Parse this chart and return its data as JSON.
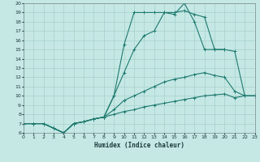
{
  "xlabel": "Humidex (Indice chaleur)",
  "xlim": [
    0,
    23
  ],
  "ylim": [
    6,
    20
  ],
  "xticks": [
    0,
    1,
    2,
    3,
    4,
    5,
    6,
    7,
    8,
    9,
    10,
    11,
    12,
    13,
    14,
    15,
    16,
    17,
    18,
    19,
    20,
    21,
    22,
    23
  ],
  "yticks": [
    6,
    7,
    8,
    9,
    10,
    11,
    12,
    13,
    14,
    15,
    16,
    17,
    18,
    19,
    20
  ],
  "bg_color": "#c5e8e5",
  "line_color": "#1e7a6e",
  "grid_color": "#a8d0cc",
  "lines": [
    {
      "x": [
        0,
        1,
        2,
        3,
        4,
        5,
        6,
        7,
        8,
        9,
        10,
        11,
        12,
        13,
        14,
        15,
        16,
        17,
        18,
        19,
        20,
        21,
        22,
        23
      ],
      "y": [
        7,
        7,
        7,
        6.5,
        6,
        7,
        7.2,
        7.5,
        7.7,
        8.0,
        8.3,
        8.5,
        8.8,
        9.0,
        9.2,
        9.4,
        9.6,
        9.8,
        10.0,
        10.1,
        10.2,
        9.8,
        10.0,
        10.0
      ]
    },
    {
      "x": [
        0,
        1,
        2,
        3,
        4,
        5,
        6,
        7,
        8,
        9,
        10,
        11,
        12,
        13,
        14,
        15,
        16,
        17,
        18,
        19,
        20,
        21,
        22,
        23
      ],
      "y": [
        7,
        7,
        7,
        6.5,
        6,
        7,
        7.2,
        7.5,
        7.7,
        8.5,
        9.5,
        10.0,
        10.5,
        11.0,
        11.5,
        11.8,
        12.0,
        12.3,
        12.5,
        12.2,
        12.0,
        10.5,
        10.0,
        10.0
      ]
    },
    {
      "x": [
        0,
        1,
        2,
        3,
        4,
        5,
        6,
        7,
        8,
        9,
        10,
        11,
        12,
        13,
        14,
        15,
        16,
        17,
        18,
        19,
        20,
        21,
        22,
        23
      ],
      "y": [
        7,
        7,
        7,
        6.5,
        6,
        7,
        7.2,
        7.5,
        7.7,
        10.0,
        12.5,
        15.0,
        16.5,
        17.0,
        19.0,
        19.0,
        19.2,
        18.8,
        18.5,
        15.0,
        15.0,
        14.8,
        10.0,
        10.0
      ]
    },
    {
      "x": [
        0,
        1,
        2,
        3,
        4,
        5,
        6,
        7,
        8,
        9,
        10,
        11,
        12,
        13,
        14,
        15,
        16,
        17,
        18,
        19,
        20
      ],
      "y": [
        7,
        7,
        7,
        6.5,
        6,
        7,
        7.2,
        7.5,
        7.7,
        10.0,
        15.5,
        19.0,
        19.0,
        19.0,
        19.0,
        18.8,
        20.0,
        18.0,
        15.0,
        15.0,
        15.0
      ]
    }
  ]
}
